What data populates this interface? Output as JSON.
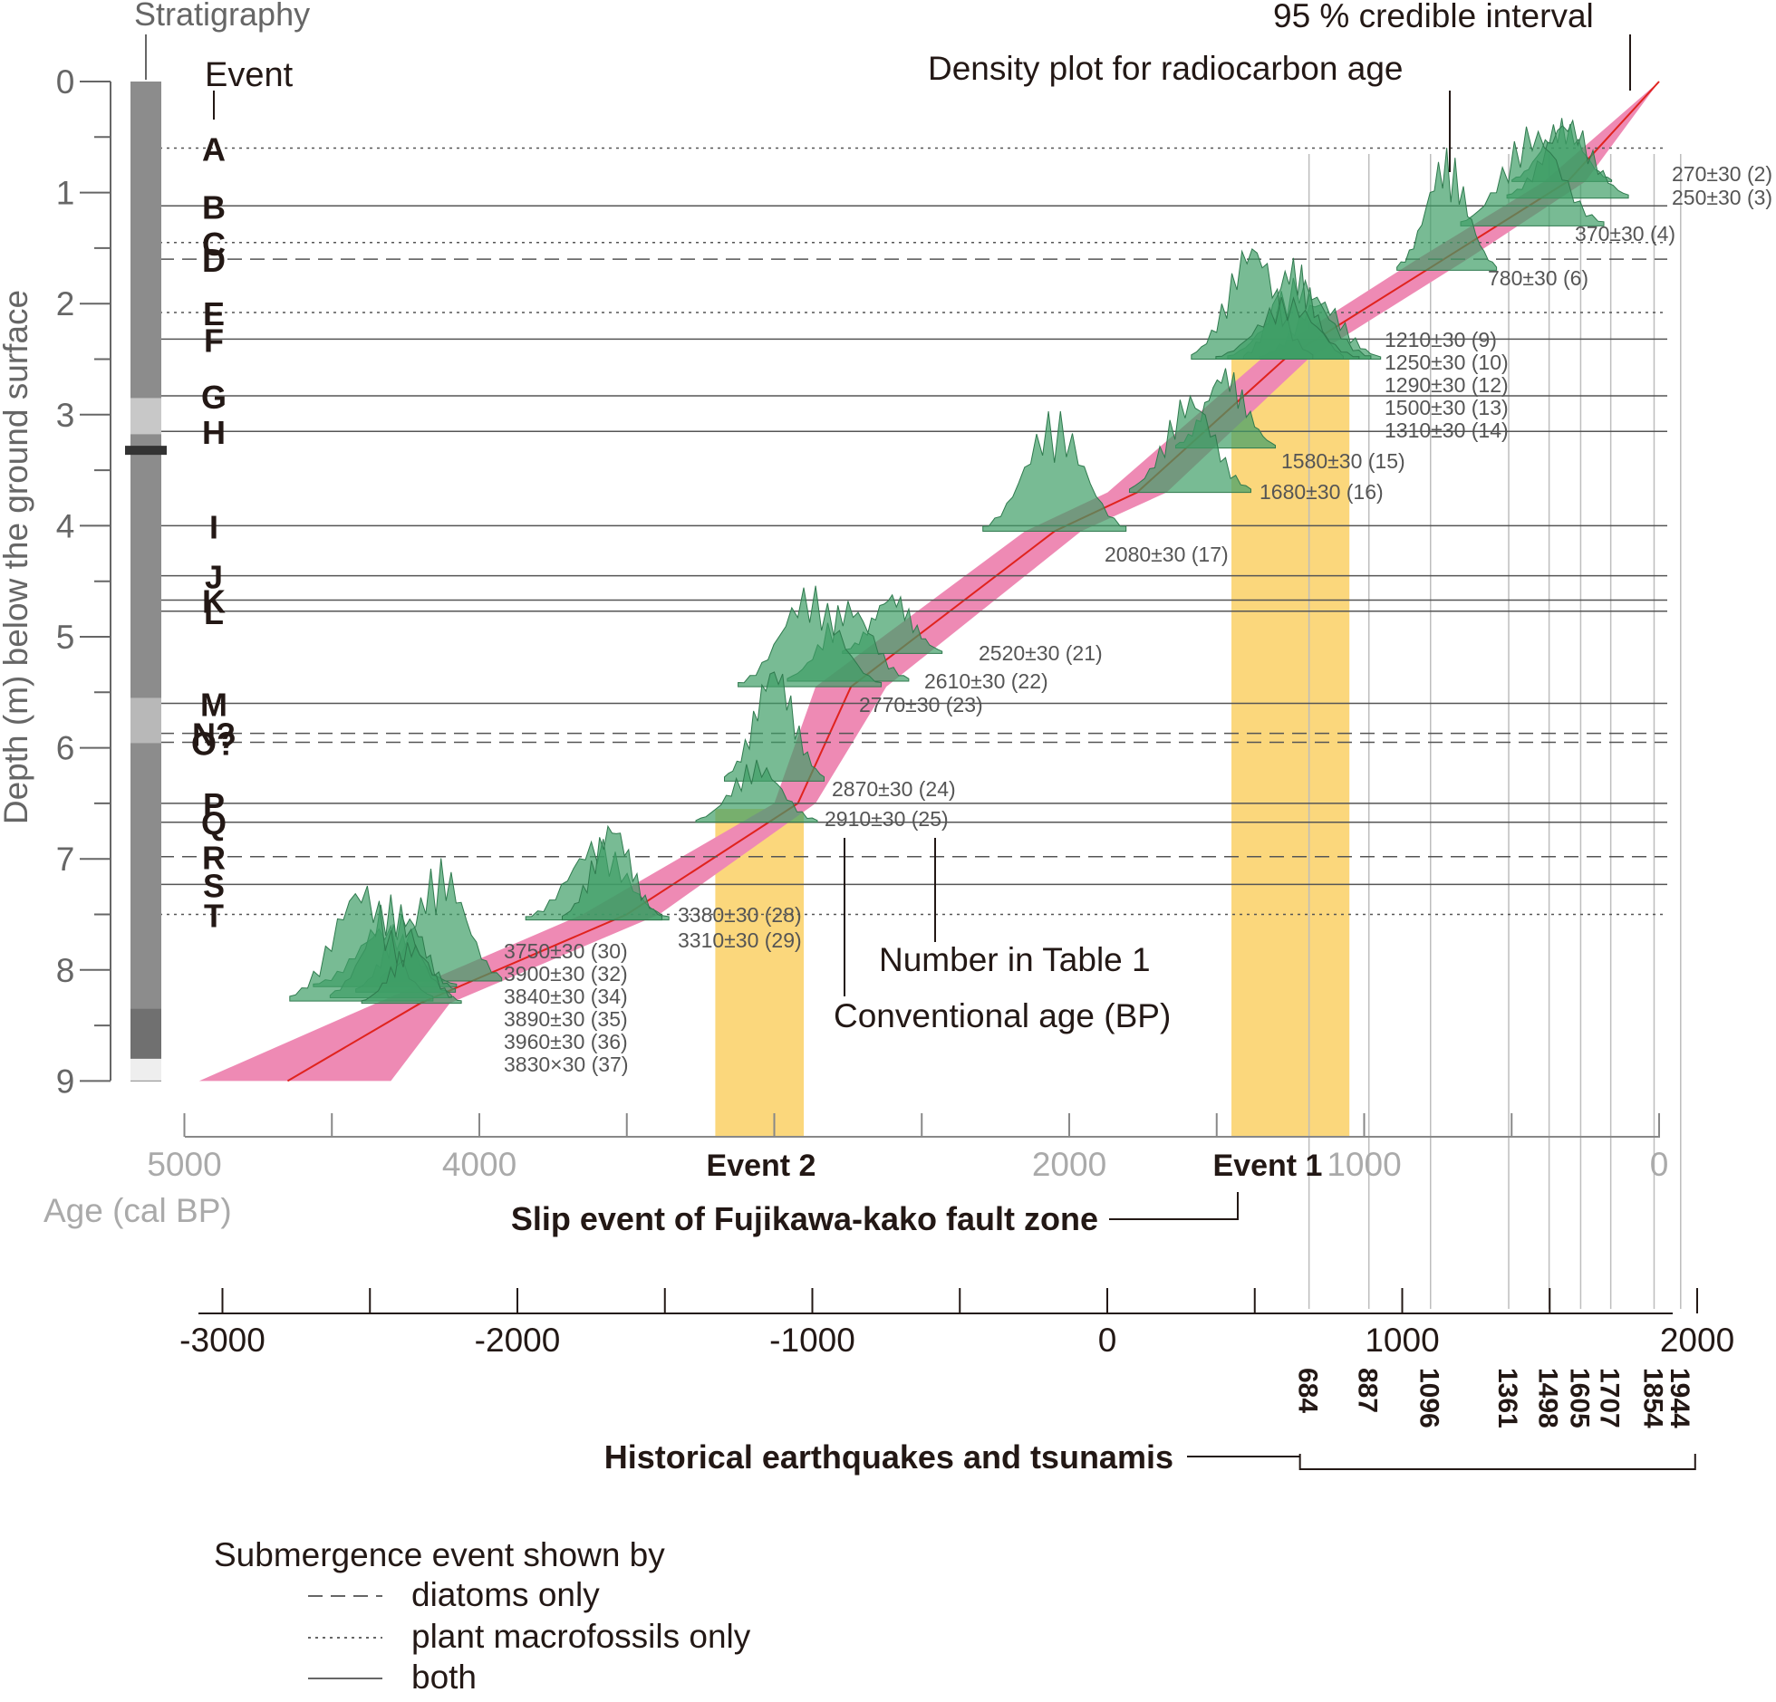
{
  "chart_data": {
    "type": "line",
    "title": "",
    "ylabel": "Depth (m) below the ground surface",
    "xlabel": "Age (cal BP)",
    "ylim": [
      0,
      9
    ],
    "xlim": [
      5000,
      0
    ],
    "y_ticks": [
      "0",
      "1",
      "2",
      "3",
      "4",
      "5",
      "6",
      "7",
      "8",
      "9"
    ],
    "x_ticks": [
      "5000",
      "4000",
      "2000",
      "1000",
      "0"
    ],
    "x_tick_values": [
      5000,
      4000,
      2000,
      1000,
      0
    ],
    "calendar_axis": {
      "ticks": [
        "-3000",
        "-2000",
        "-1000",
        "0",
        "1000",
        "2000"
      ],
      "tick_values": [
        -3000,
        -2000,
        -1000,
        0,
        1000,
        2000
      ]
    },
    "headers": {
      "stratigraphy": "Stratigraphy",
      "event": "Event",
      "credible_interval": "95 % credible interval",
      "density": "Density plot for radiocarbon age",
      "number_in_table": "Number in Table 1",
      "conventional_age": "Conventional age (BP)"
    },
    "colors": {
      "credible_interval": "#ee8ab4",
      "median_line": "#e0231e",
      "density": "#3e9e66",
      "slip_band": "#fbd77c"
    },
    "events": [
      {
        "label": "A",
        "depth": 0.6,
        "style": "dotted"
      },
      {
        "label": "B",
        "depth": 1.12,
        "style": "solid"
      },
      {
        "label": "C",
        "depth": 1.45,
        "style": "dotted"
      },
      {
        "label": "D",
        "depth": 1.6,
        "style": "dashed"
      },
      {
        "label": "E",
        "depth": 2.08,
        "style": "dotted"
      },
      {
        "label": "F",
        "depth": 2.32,
        "style": "solid"
      },
      {
        "label": "G",
        "depth": 2.83,
        "style": "solid"
      },
      {
        "label": "H",
        "depth": 3.15,
        "style": "solid"
      },
      {
        "label": "I",
        "depth": 4.0,
        "style": "solid"
      },
      {
        "label": "J",
        "depth": 4.45,
        "style": "solid"
      },
      {
        "label": "K",
        "depth": 4.67,
        "style": "solid"
      },
      {
        "label": "L",
        "depth": 4.77,
        "style": "solid"
      },
      {
        "label": "M",
        "depth": 5.6,
        "style": "solid"
      },
      {
        "label": "N?",
        "depth": 5.87,
        "style": "dashed"
      },
      {
        "label": "O?",
        "depth": 5.95,
        "style": "dashed"
      },
      {
        "label": "P",
        "depth": 6.5,
        "style": "solid"
      },
      {
        "label": "Q",
        "depth": 6.67,
        "style": "solid"
      },
      {
        "label": "R",
        "depth": 6.98,
        "style": "dashed"
      },
      {
        "label": "S",
        "depth": 7.23,
        "style": "solid"
      },
      {
        "label": "T",
        "depth": 7.5,
        "style": "dotted"
      }
    ],
    "age_depth_model": {
      "depth": [
        0,
        0.9,
        1.6,
        2.5,
        3.7,
        4.05,
        5.45,
        6.5,
        7.5,
        8.3,
        9.0
      ],
      "median_age": [
        0,
        310,
        730,
        1270,
        1770,
        2050,
        2740,
        2920,
        3500,
        4200,
        4650
      ],
      "lower_age": [
        0,
        250,
        650,
        1190,
        1670,
        1960,
        2620,
        2860,
        3390,
        4100,
        4300
      ],
      "upper_age": [
        0,
        390,
        820,
        1350,
        1870,
        2150,
        2860,
        3000,
        3650,
        4350,
        4950
      ]
    },
    "radiocarbon_samples": [
      {
        "label": "270±30 (2)",
        "depth": 0.9,
        "age": 330
      },
      {
        "label": "250±30 (3)",
        "depth": 1.05,
        "age": 310
      },
      {
        "label": "370±30 (4)",
        "depth": 1.3,
        "age": 430
      },
      {
        "label": "780±30 (6)",
        "depth": 1.7,
        "age": 720
      },
      {
        "label": "1210±30 (9)",
        "depth": 2.5,
        "age": 1150
      },
      {
        "label": "1250±30 (10)",
        "depth": 2.5,
        "age": 1220
      },
      {
        "label": "1290±30 (12)",
        "depth": 2.5,
        "age": 1240
      },
      {
        "label": "1500±30 (13)",
        "depth": 2.5,
        "age": 1380
      },
      {
        "label": "1310±30 (14)",
        "depth": 2.5,
        "age": 1260
      },
      {
        "label": "1580±30 (15)",
        "depth": 3.3,
        "age": 1470
      },
      {
        "label": "1680±30 (16)",
        "depth": 3.7,
        "age": 1590
      },
      {
        "label": "2080±30 (17)",
        "depth": 4.05,
        "age": 2050
      },
      {
        "label": "2520±30 (21)",
        "depth": 5.15,
        "age": 2600
      },
      {
        "label": "2610±30 (22)",
        "depth": 5.4,
        "age": 2750
      },
      {
        "label": "2770±30 (23)",
        "depth": 5.45,
        "age": 2880
      },
      {
        "label": "2870±30 (24)",
        "depth": 6.3,
        "age": 3000
      },
      {
        "label": "2910±30 (25)",
        "depth": 6.67,
        "age": 3060
      },
      {
        "label": "3380±30 (28)",
        "depth": 7.55,
        "age": 3600
      },
      {
        "label": "3310±30 (29)",
        "depth": 7.55,
        "age": 3550
      },
      {
        "label": "3750±30 (30)",
        "depth": 8.1,
        "age": 4130
      },
      {
        "label": "3900±30 (32)",
        "depth": 8.15,
        "age": 4320
      },
      {
        "label": "3840±30 (34)",
        "depth": 8.2,
        "age": 4250
      },
      {
        "label": "3890±30 (35)",
        "depth": 8.25,
        "age": 4300
      },
      {
        "label": "3960±30 (36)",
        "depth": 8.28,
        "age": 4400
      },
      {
        "label": "3830×30 (37)",
        "depth": 8.3,
        "age": 4230
      }
    ],
    "slip_events": {
      "title": "Slip event of Fujikawa-kako fault zone",
      "items": [
        {
          "label": "Event 2",
          "age_from": 3200,
          "age_to": 2900
        },
        {
          "label": "Event 1",
          "age_from": 1450,
          "age_to": 1050
        }
      ]
    },
    "historical_earthquakes": {
      "title": "Historical earthquakes and tsunamis",
      "years": [
        "684",
        "887",
        "1096",
        "1361",
        "1498",
        "1605",
        "1707",
        "1854",
        "1944"
      ],
      "year_values": [
        684,
        887,
        1096,
        1361,
        1498,
        1605,
        1707,
        1854,
        1944
      ]
    },
    "legend": {
      "title": "Submergence event shown by",
      "items": [
        {
          "label": "diatoms only",
          "style": "dashed"
        },
        {
          "label": "plant macrofossils only",
          "style": "dotted"
        },
        {
          "label": "both",
          "style": "solid"
        }
      ]
    }
  }
}
